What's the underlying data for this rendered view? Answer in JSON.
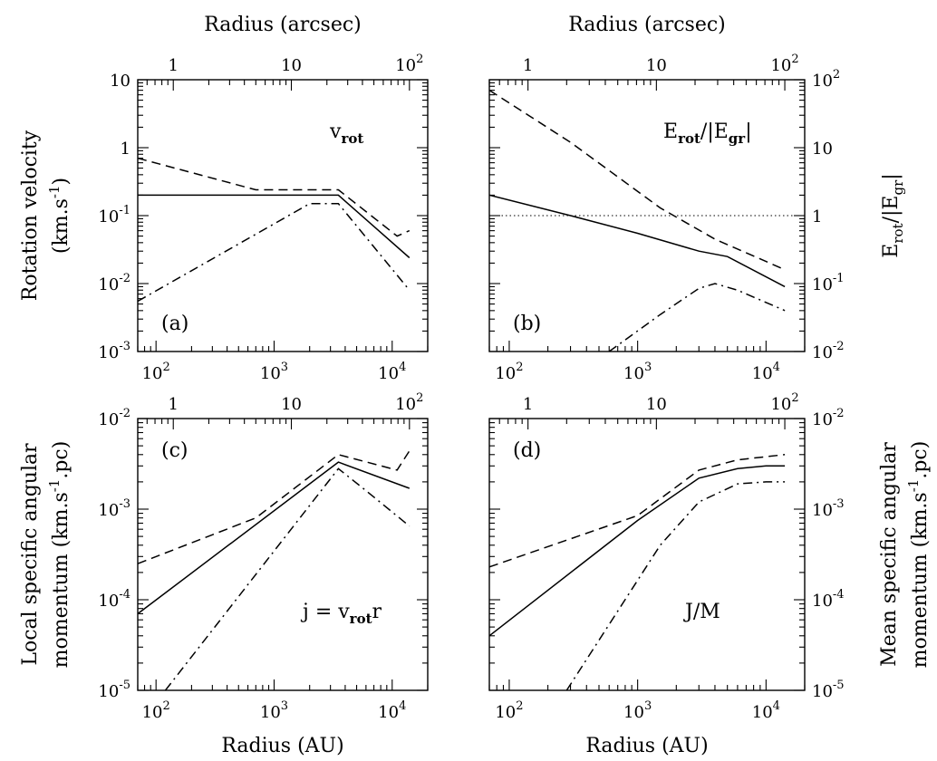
{
  "figure": {
    "top_axis_title": "Radius (arcsec)",
    "bottom_axis_title": "Radius (AU)"
  },
  "chart_data": [
    {
      "id": "a",
      "type": "line",
      "tag": "(a)",
      "annotation": {
        "base": "v",
        "sub": "rot",
        "tail": ""
      },
      "x_scale": "log",
      "y_scale": "log",
      "xlim_au": [
        70,
        20000
      ],
      "ylim": [
        0.001,
        10
      ],
      "xlabel": "Radius (AU)",
      "ylabel": [
        "Rotation velocity",
        "(km.s",
        "-1",
        ")"
      ],
      "top_axis": {
        "label": "Radius (arcsec)",
        "ticks": [
          1,
          10,
          100
        ],
        "tick_labels": [
          "1",
          "10",
          "1",
          "10",
          "2"
        ]
      },
      "series": [
        {
          "style": "solid",
          "x": [
            70,
            3500,
            14000
          ],
          "y": [
            0.2,
            0.2,
            0.024
          ]
        },
        {
          "style": "dashed",
          "x": [
            70,
            700,
            3500,
            11000,
            14000
          ],
          "y": [
            0.7,
            0.24,
            0.24,
            0.05,
            0.06
          ]
        },
        {
          "style": "dashdot",
          "x": [
            70,
            2000,
            3500,
            14000
          ],
          "y": [
            0.0055,
            0.15,
            0.15,
            0.008
          ]
        }
      ]
    },
    {
      "id": "b",
      "type": "line",
      "tag": "(b)",
      "annotation": {
        "base": "E",
        "sub": "rot",
        "tail": "/|E",
        "sub2": "gr",
        "tail2": "|"
      },
      "x_scale": "log",
      "y_scale": "log",
      "xlim_au": [
        70,
        20000
      ],
      "ylim": [
        0.01,
        100
      ],
      "xlabel": "Radius (AU)",
      "ylabel": "Erot/|Egr|",
      "reference_line": {
        "style": "dotted",
        "y": 1
      },
      "series": [
        {
          "style": "solid",
          "x": [
            70,
            300,
            1000,
            3000,
            5000,
            14000
          ],
          "y": [
            2.0,
            1.0,
            0.55,
            0.3,
            0.25,
            0.09
          ]
        },
        {
          "style": "dashed",
          "x": [
            70,
            300,
            1500,
            4000,
            14000
          ],
          "y": [
            70,
            12,
            1.3,
            0.45,
            0.16
          ]
        },
        {
          "style": "dashdot",
          "x": [
            600,
            1500,
            3000,
            4000,
            6000,
            14000
          ],
          "y": [
            0.01,
            0.035,
            0.085,
            0.1,
            0.08,
            0.04
          ]
        }
      ]
    },
    {
      "id": "c",
      "type": "line",
      "tag": "(c)",
      "annotation": {
        "base": "j = v",
        "sub": "rot",
        "tail": "r"
      },
      "x_scale": "log",
      "y_scale": "log",
      "xlim_au": [
        70,
        20000
      ],
      "ylim": [
        1e-05,
        0.01
      ],
      "xlabel": "Radius (AU)",
      "ylabel": [
        "Local specific angular",
        "momentum (km.s",
        "-1",
        ".pc)"
      ],
      "series": [
        {
          "style": "solid",
          "x": [
            70,
            3500,
            14000
          ],
          "y": [
            7e-05,
            0.0033,
            0.0017
          ]
        },
        {
          "style": "dashed",
          "x": [
            70,
            700,
            3500,
            11000,
            14000
          ],
          "y": [
            0.00025,
            0.0008,
            0.004,
            0.0027,
            0.0044
          ]
        },
        {
          "style": "dashdot",
          "x": [
            120,
            3500,
            6000,
            14000
          ],
          "y": [
            1e-05,
            0.0028,
            0.0016,
            0.00065
          ]
        }
      ]
    },
    {
      "id": "d",
      "type": "line",
      "tag": "(d)",
      "annotation": {
        "base": "J/M",
        "sub": "",
        "tail": ""
      },
      "x_scale": "log",
      "y_scale": "log",
      "xlim_au": [
        70,
        20000
      ],
      "ylim": [
        1e-05,
        0.01
      ],
      "xlabel": "Radius (AU)",
      "ylabel": [
        "Mean specific angular",
        "momentum (km.s",
        "-1",
        ".pc)"
      ],
      "series": [
        {
          "style": "solid",
          "x": [
            70,
            1000,
            3000,
            6000,
            10000,
            14000
          ],
          "y": [
            4e-05,
            0.00075,
            0.0022,
            0.0028,
            0.003,
            0.003
          ]
        },
        {
          "style": "dashed",
          "x": [
            70,
            1000,
            3000,
            6000,
            14000
          ],
          "y": [
            0.00023,
            0.00085,
            0.0027,
            0.0035,
            0.004
          ]
        },
        {
          "style": "dashdot",
          "x": [
            280,
            1500,
            3000,
            6000,
            10000,
            14000
          ],
          "y": [
            1e-05,
            0.0004,
            0.0012,
            0.0019,
            0.002,
            0.002
          ]
        }
      ]
    }
  ]
}
